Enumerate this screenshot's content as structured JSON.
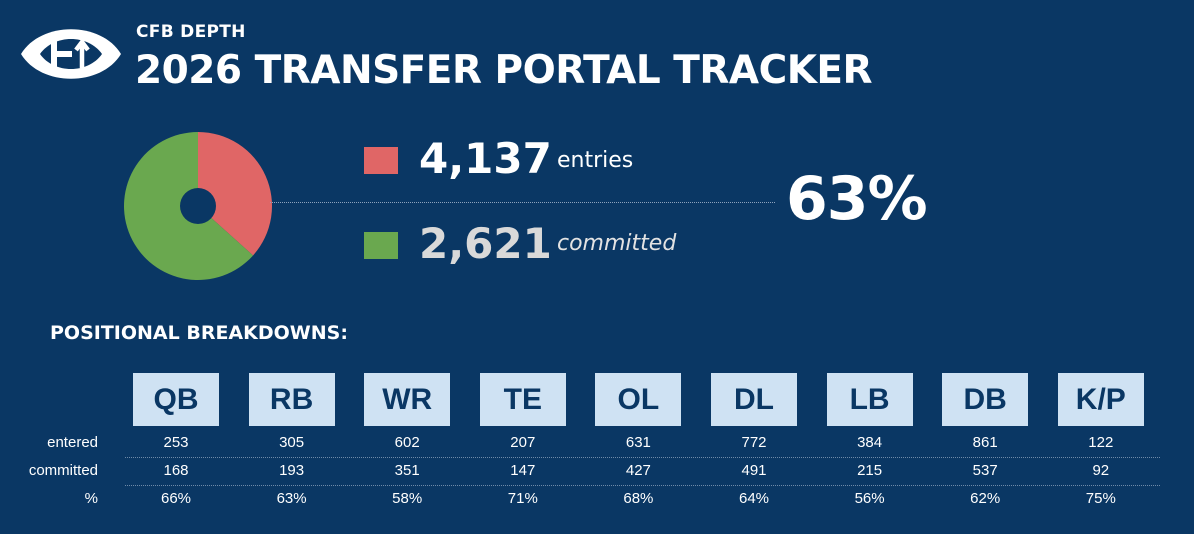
{
  "header": {
    "brand": "CFB DEPTH",
    "title": "2026 TRANSFER PORTAL TRACKER",
    "logo_icon": "football-transfer-arrows-icon"
  },
  "summary": {
    "entries_value": "4,137",
    "entries_label": "entries",
    "committed_value": "2,621",
    "committed_label": "committed",
    "percent": "63%"
  },
  "colors": {
    "background": "#0a3764",
    "entries": "#e06666",
    "committed": "#6aa84f",
    "position_box": "#cfe2f3"
  },
  "breakdown": {
    "heading": "POSITIONAL BREAKDOWNS:",
    "row_labels": [
      "entered",
      "committed",
      "%"
    ],
    "positions": [
      "QB",
      "RB",
      "WR",
      "TE",
      "OL",
      "DL",
      "LB",
      "DB",
      "K/P"
    ],
    "entered": [
      "253",
      "305",
      "602",
      "207",
      "631",
      "772",
      "384",
      "861",
      "122"
    ],
    "committed": [
      "168",
      "193",
      "351",
      "147",
      "427",
      "491",
      "215",
      "537",
      "92"
    ],
    "percent": [
      "66%",
      "63%",
      "58%",
      "71%",
      "68%",
      "64%",
      "56%",
      "62%",
      "75%"
    ]
  },
  "chart_data": [
    {
      "type": "pie",
      "categories": [
        "entries",
        "committed"
      ],
      "values": [
        1516,
        2621
      ],
      "colors": [
        "#e06666",
        "#6aa84f"
      ],
      "center_hole": true
    },
    {
      "type": "table",
      "columns": [
        "QB",
        "RB",
        "WR",
        "TE",
        "OL",
        "DL",
        "LB",
        "DB",
        "K/P"
      ],
      "rows": [
        {
          "label": "entered",
          "values": [
            253,
            305,
            602,
            207,
            631,
            772,
            384,
            861,
            122
          ]
        },
        {
          "label": "committed",
          "values": [
            168,
            193,
            351,
            147,
            427,
            491,
            215,
            537,
            92
          ]
        },
        {
          "label": "%",
          "values": [
            "66%",
            "63%",
            "58%",
            "71%",
            "68%",
            "64%",
            "56%",
            "62%",
            "75%"
          ]
        }
      ]
    }
  ]
}
